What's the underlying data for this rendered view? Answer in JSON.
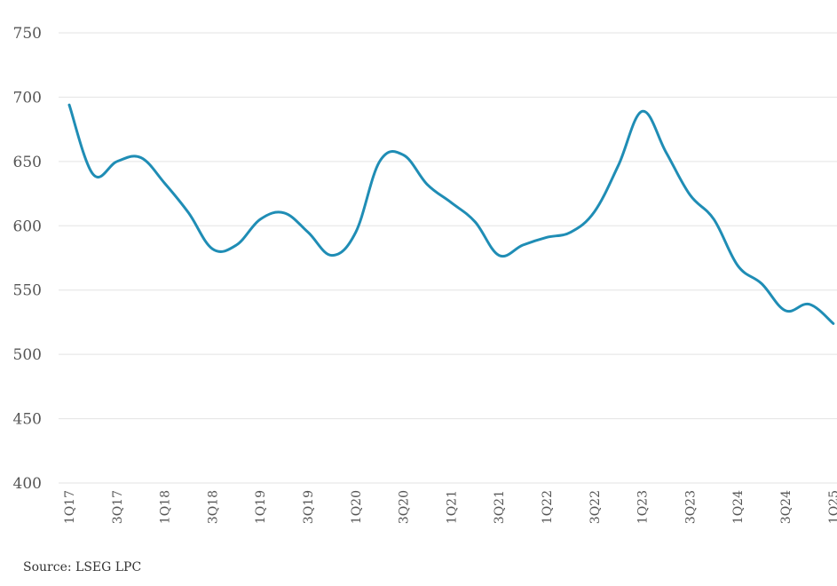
{
  "chart_data": {
    "type": "line",
    "ylim": [
      400,
      750
    ],
    "yticks": [
      750,
      700,
      650,
      600,
      550,
      500,
      450,
      400
    ],
    "x": [
      "1Q17",
      "2Q17",
      "3Q17",
      "4Q17",
      "1Q18",
      "2Q18",
      "3Q18",
      "4Q18",
      "1Q19",
      "2Q19",
      "3Q19",
      "4Q19",
      "1Q20",
      "2Q20",
      "3Q20",
      "4Q20",
      "1Q21",
      "2Q21",
      "3Q21",
      "4Q21",
      "1Q22",
      "2Q22",
      "3Q22",
      "4Q22",
      "1Q23",
      "2Q23",
      "3Q23",
      "4Q23",
      "1Q24",
      "2Q24",
      "3Q24",
      "4Q24",
      "1Q25"
    ],
    "xtick_labels": [
      "1Q17",
      "3Q17",
      "1Q18",
      "3Q18",
      "1Q19",
      "3Q19",
      "1Q20",
      "3Q20",
      "1Q21",
      "3Q21",
      "1Q22",
      "3Q22",
      "1Q23",
      "3Q23",
      "1Q24",
      "3Q24",
      "1Q25"
    ],
    "series": [
      {
        "color": "#1f8db5",
        "values": [
          694,
          640,
          650,
          653,
          633,
          610,
          582,
          585,
          605,
          610,
          595,
          577,
          595,
          650,
          655,
          632,
          618,
          603,
          577,
          585,
          591,
          595,
          611,
          647,
          689,
          657,
          624,
          605,
          569,
          555,
          534,
          539,
          524
        ]
      }
    ],
    "grid": true,
    "legend": "none"
  },
  "source": "Source:  LSEG LPC"
}
